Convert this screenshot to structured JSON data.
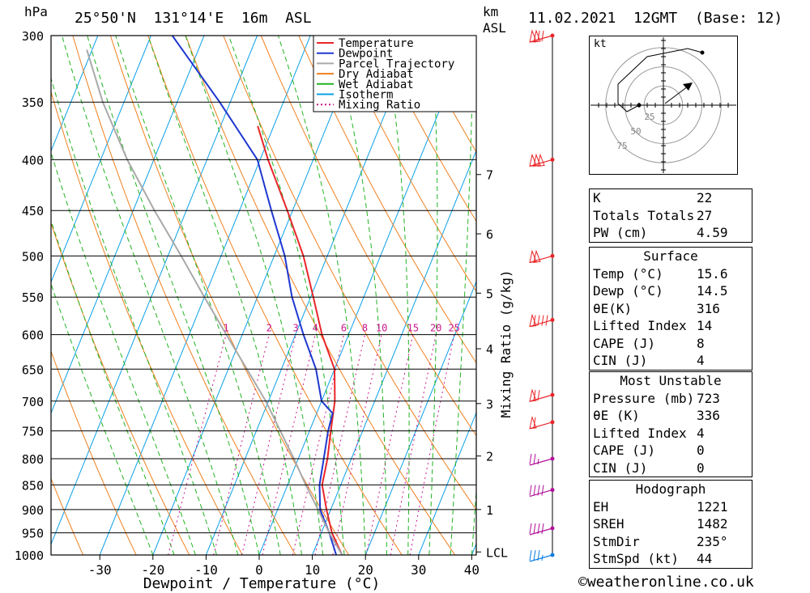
{
  "header": {
    "pressure_unit": "hPa",
    "location": "25°50'N  131°14'E  16m  ASL",
    "height_unit_top": "km",
    "height_unit_bottom": "ASL",
    "datetime": "11.02.2021  12GMT  (Base: 12)"
  },
  "chart_data": {
    "type": "line",
    "title": "25°50'N  131°14'E  16m  ASL",
    "xlabel": "Dewpoint / Temperature (°C)",
    "ylabel": "hPa",
    "right_label": "Mixing Ratio (g/kg)",
    "x_ticks": [
      -30,
      -20,
      -10,
      0,
      10,
      20,
      30,
      40
    ],
    "xlim": [
      -40,
      40
    ],
    "pressure_levels": [
      300,
      350,
      400,
      450,
      500,
      550,
      600,
      650,
      700,
      750,
      800,
      850,
      900,
      950,
      1000
    ],
    "ylim": [
      1000,
      300
    ],
    "y_scale": "log",
    "skew": true,
    "km_ticks": [
      {
        "label": "1",
        "p": 900
      },
      {
        "label": "2",
        "p": 795
      },
      {
        "label": "3",
        "p": 704
      },
      {
        "label": "4",
        "p": 620
      },
      {
        "label": "5",
        "p": 545
      },
      {
        "label": "6",
        "p": 475
      },
      {
        "label": "7",
        "p": 414
      },
      {
        "label": "LCL",
        "p": 993
      }
    ],
    "mixing_ratio_labels": [
      "1",
      "2",
      "3",
      "4",
      "6",
      "8",
      "10",
      "15",
      "20",
      "25"
    ],
    "legend": [
      "Temperature",
      "Dewpoint",
      "Parcel Trajectory",
      "Dry Adiabat",
      "Wet Adiabat",
      "Isotherm",
      "Mixing Ratio"
    ],
    "legend_position": "top-right",
    "series": [
      {
        "name": "Temperature",
        "color": "#e8262a",
        "points": [
          [
            1000,
            15.6
          ],
          [
            950,
            12.0
          ],
          [
            900,
            9.2
          ],
          [
            850,
            6.5
          ],
          [
            800,
            5.5
          ],
          [
            750,
            4.0
          ],
          [
            700,
            2.5
          ],
          [
            650,
            0.0
          ],
          [
            600,
            -5.0
          ],
          [
            550,
            -9.5
          ],
          [
            500,
            -14.5
          ],
          [
            450,
            -21.0
          ],
          [
            400,
            -28.5
          ],
          [
            370,
            -33.0
          ]
        ]
      },
      {
        "name": "Dewpoint",
        "color": "#1f38d0",
        "points": [
          [
            1000,
            14.5
          ],
          [
            950,
            11.5
          ],
          [
            900,
            8.0
          ],
          [
            850,
            6.0
          ],
          [
            800,
            4.8
          ],
          [
            750,
            3.5
          ],
          [
            720,
            3.0
          ],
          [
            700,
            0.0
          ],
          [
            650,
            -3.5
          ],
          [
            600,
            -8.5
          ],
          [
            550,
            -13.5
          ],
          [
            500,
            -18.0
          ],
          [
            450,
            -24.0
          ],
          [
            400,
            -30.5
          ],
          [
            350,
            -42.0
          ],
          [
            300,
            -56.0
          ]
        ]
      },
      {
        "name": "Parcel Trajectory",
        "color": "#a9a9a9",
        "points": [
          [
            1000,
            15.6
          ],
          [
            950,
            11.5
          ],
          [
            900,
            7.6
          ],
          [
            850,
            3.4
          ],
          [
            800,
            -0.8
          ],
          [
            750,
            -5.5
          ],
          [
            700,
            -10.5
          ],
          [
            650,
            -16.5
          ],
          [
            600,
            -23.0
          ],
          [
            550,
            -30.0
          ],
          [
            500,
            -37.5
          ],
          [
            450,
            -46.0
          ],
          [
            400,
            -55.0
          ],
          [
            350,
            -64.0
          ],
          [
            310,
            -71.0
          ]
        ]
      }
    ]
  },
  "wind_barbs": [
    {
      "p": 300,
      "speed_kt": 120,
      "color": "#e8262a"
    },
    {
      "p": 400,
      "speed_kt": 150,
      "color": "#e8262a"
    },
    {
      "p": 500,
      "speed_kt": 100,
      "color": "#e8262a"
    },
    {
      "p": 580,
      "speed_kt": 90,
      "color": "#e8262a"
    },
    {
      "p": 690,
      "speed_kt": 70,
      "color": "#e8262a"
    },
    {
      "p": 735,
      "speed_kt": 60,
      "color": "#e8262a"
    },
    {
      "p": 800,
      "speed_kt": 25,
      "color": "#b0109a"
    },
    {
      "p": 860,
      "speed_kt": 40,
      "color": "#b0109a"
    },
    {
      "p": 940,
      "speed_kt": 40,
      "color": "#b0109a"
    },
    {
      "p": 1000,
      "speed_kt": 35,
      "color": "#0a7ee0"
    }
  ],
  "hodograph": {
    "unit_label": "kt",
    "ring_labels": [
      "25",
      "50",
      "75"
    ],
    "storm_motion_dir_deg": 235,
    "storm_motion_kt": 44
  },
  "indices": {
    "top": [
      {
        "label": "K",
        "value": "22"
      },
      {
        "label": "Totals Totals",
        "value": "27"
      },
      {
        "label": "PW (cm)",
        "value": "4.59"
      }
    ],
    "surface": {
      "title": "Surface",
      "rows": [
        {
          "label": "Temp (°C)",
          "value": "15.6"
        },
        {
          "label": "Dewp (°C)",
          "value": "14.5"
        },
        {
          "label": "θE(K)",
          "value": "316"
        },
        {
          "label": "Lifted Index",
          "value": "14"
        },
        {
          "label": "CAPE (J)",
          "value": "8"
        },
        {
          "label": "CIN (J)",
          "value": "4"
        }
      ]
    },
    "most_unstable": {
      "title": "Most Unstable",
      "rows": [
        {
          "label": "Pressure (mb)",
          "value": "723"
        },
        {
          "label": "θE (K)",
          "value": "336"
        },
        {
          "label": "Lifted Index",
          "value": "4"
        },
        {
          "label": "CAPE (J)",
          "value": "0"
        },
        {
          "label": "CIN (J)",
          "value": "0"
        }
      ]
    },
    "hodograph_stats": {
      "title": "Hodograph",
      "rows": [
        {
          "label": "EH",
          "value": "1221"
        },
        {
          "label": "SREH",
          "value": "1482"
        },
        {
          "label": "StmDir",
          "value": "235°"
        },
        {
          "label": "StmSpd (kt)",
          "value": "44"
        }
      ]
    }
  },
  "credit": "©weatheronline.co.uk"
}
